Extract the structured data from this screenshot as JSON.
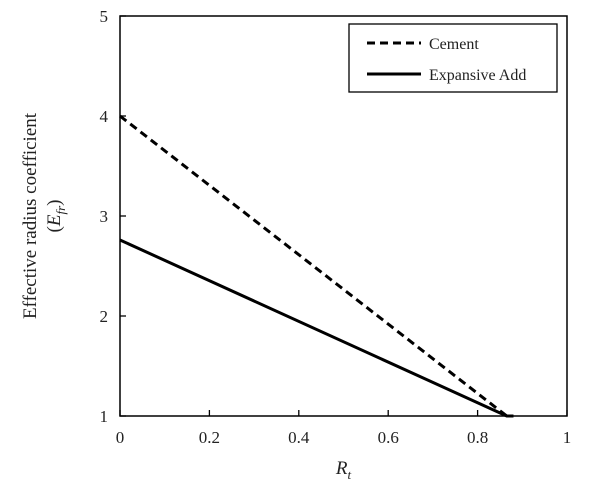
{
  "chart_data": {
    "type": "line",
    "title": "",
    "xlabel": {
      "main": "R",
      "sub": "t"
    },
    "ylabel": {
      "line1": "Effective radius coefficient",
      "line2_open": "(",
      "line2_main": "E",
      "line2_sub": "fr",
      "line2_close": ")"
    },
    "xlim": [
      0,
      1
    ],
    "ylim": [
      1,
      5
    ],
    "x_ticks": [
      0,
      0.2,
      0.4,
      0.6,
      0.8,
      1
    ],
    "x_tick_labels": [
      "0",
      "0.2",
      "0.4",
      "0.6",
      "0.8",
      "1"
    ],
    "y_ticks": [
      1,
      2,
      3,
      4,
      5
    ],
    "y_tick_labels": [
      "1",
      "2",
      "3",
      "4",
      "5"
    ],
    "grid": false,
    "legend_position": "top-right",
    "series": [
      {
        "name": "Cement",
        "style": "dashed",
        "color": "#000000",
        "x": [
          0,
          0.865,
          0.88
        ],
        "y": [
          4.0,
          1.0,
          1.0
        ]
      },
      {
        "name": "Expansive Add",
        "style": "solid",
        "color": "#000000",
        "x": [
          0,
          0.865,
          0.88
        ],
        "y": [
          2.76,
          1.0,
          1.0
        ]
      }
    ]
  }
}
